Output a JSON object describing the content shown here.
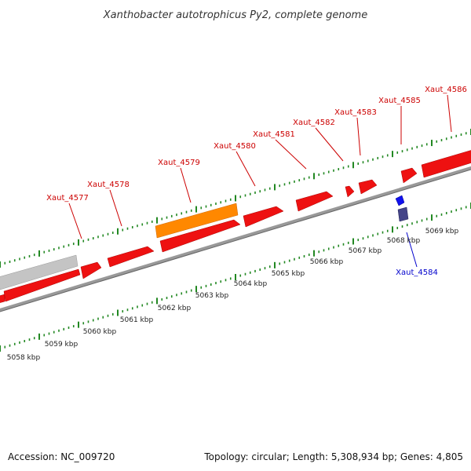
{
  "title": "Xanthobacter autotrophicus Py2, complete genome",
  "footer": {
    "accession": "Accession: NC_009720",
    "summary": "Topology: circular; Length: 5,308,934 bp; Genes: 4,805"
  },
  "colors": {
    "forward_gene": "#ee1111",
    "highlight_gene": "#ff8800",
    "rna_gene": "#c0c0c0",
    "reverse_gene": "#1111ee",
    "reverse_gene_dark": "#444488",
    "backbone": "#888888",
    "ticks": "#228822",
    "label_red": "#cc0000",
    "label_blue": "#0000cc"
  },
  "scale_labels": [
    "5058 kbp",
    "5059 kbp",
    "5060 kbp",
    "5061 kbp",
    "5062 kbp",
    "5063 kbp",
    "5064 kbp",
    "5065 kbp",
    "5066 kbp",
    "5067 kbp",
    "5068 kbp",
    "5069 kbp"
  ],
  "gene_labels": [
    {
      "label": "Xaut_4577",
      "strand": "forward"
    },
    {
      "label": "Xaut_4578",
      "strand": "forward"
    },
    {
      "label": "Xaut_4579",
      "strand": "forward"
    },
    {
      "label": "Xaut_4580",
      "strand": "forward"
    },
    {
      "label": "Xaut_4581",
      "strand": "forward"
    },
    {
      "label": "Xaut_4582",
      "strand": "forward"
    },
    {
      "label": "Xaut_4583",
      "strand": "forward"
    },
    {
      "label": "Xaut_4585",
      "strand": "forward"
    },
    {
      "label": "Xaut_4586",
      "strand": "forward"
    },
    {
      "label": "Xaut_4584",
      "strand": "reverse"
    }
  ]
}
